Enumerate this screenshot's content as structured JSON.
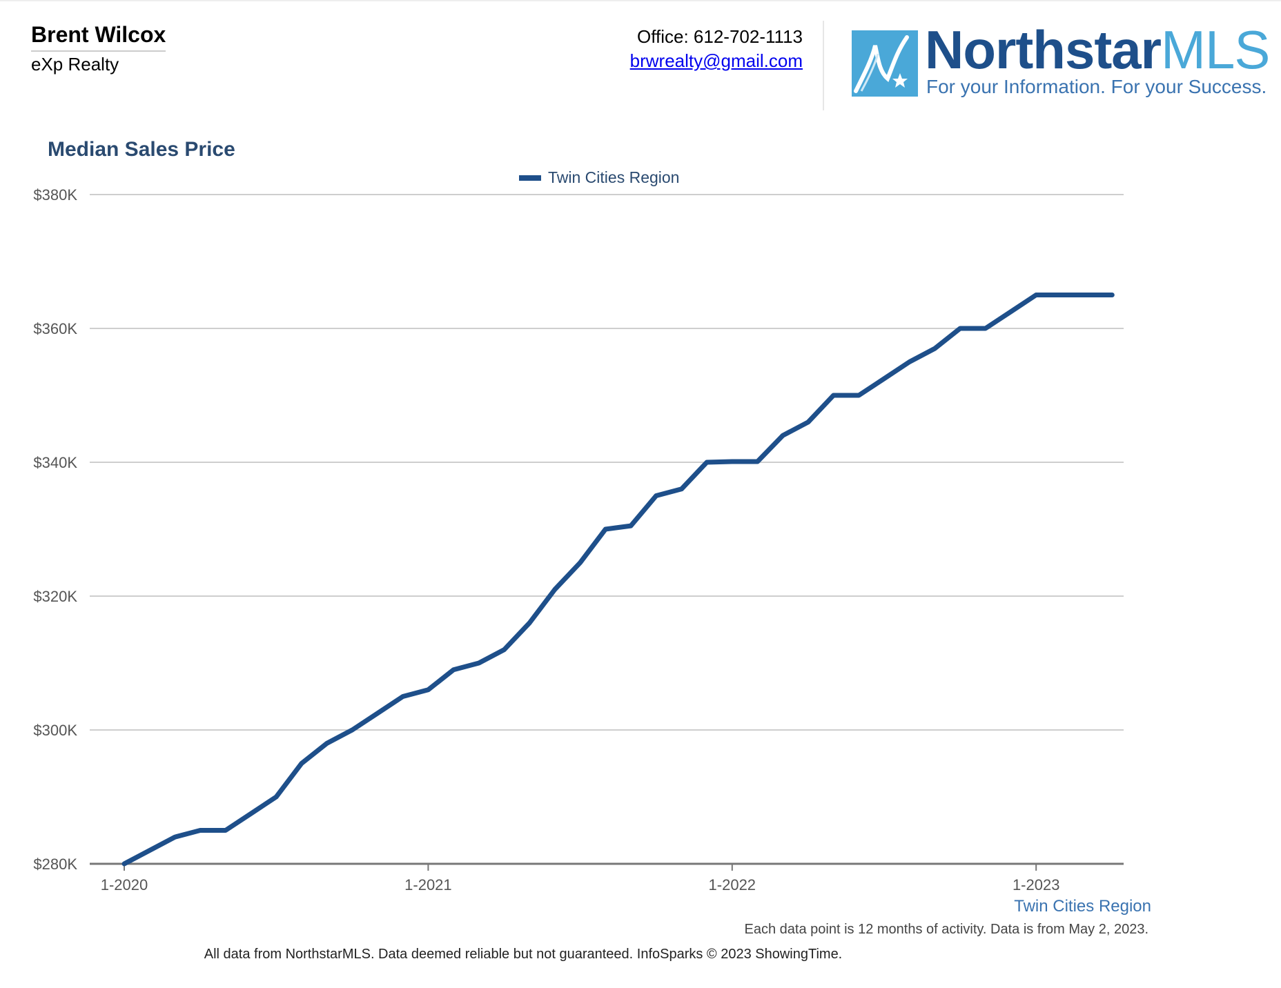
{
  "agent": {
    "name": "Brent Wilcox",
    "company": "eXp Realty"
  },
  "contact": {
    "office": "Office: 612-702-1113",
    "email": "brwrealty@gmail.com"
  },
  "logo": {
    "word_main": "Northstar",
    "word_accent": "MLS",
    "tagline": "For your Information. For your Success.",
    "brand_color": "#1e4f8a",
    "accent_color": "#4aa8d8",
    "icon": "northstar-logo-icon"
  },
  "chart_data": {
    "type": "line",
    "title": "Median Sales Price",
    "xlabel": "",
    "ylabel": "",
    "legend_position": "top-center",
    "grid": true,
    "ylim": [
      280000,
      380000
    ],
    "yticks": [
      {
        "value": 280000,
        "label": "$280K"
      },
      {
        "value": 300000,
        "label": "$300K"
      },
      {
        "value": 320000,
        "label": "$320K"
      },
      {
        "value": 340000,
        "label": "$340K"
      },
      {
        "value": 360000,
        "label": "$360K"
      },
      {
        "value": 380000,
        "label": "$380K"
      }
    ],
    "xticks": [
      {
        "value": "2020-01",
        "label": "1-2020"
      },
      {
        "value": "2021-01",
        "label": "1-2021"
      },
      {
        "value": "2022-01",
        "label": "1-2022"
      },
      {
        "value": "2023-01",
        "label": "1-2023"
      }
    ],
    "x": [
      "2020-01",
      "2020-02",
      "2020-03",
      "2020-04",
      "2020-05",
      "2020-06",
      "2020-07",
      "2020-08",
      "2020-09",
      "2020-10",
      "2020-11",
      "2020-12",
      "2021-01",
      "2021-02",
      "2021-03",
      "2021-04",
      "2021-05",
      "2021-06",
      "2021-07",
      "2021-08",
      "2021-09",
      "2021-10",
      "2021-11",
      "2021-12",
      "2022-01",
      "2022-02",
      "2022-03",
      "2022-04",
      "2022-05",
      "2022-06",
      "2022-07",
      "2022-08",
      "2022-09",
      "2022-10",
      "2022-11",
      "2022-12",
      "2023-01",
      "2023-02",
      "2023-03",
      "2023-04"
    ],
    "series": [
      {
        "name": "Twin Cities Region",
        "color": "#1e4f8a",
        "values": [
          280000,
          282000,
          284000,
          285000,
          285000,
          287500,
          290000,
          295000,
          298000,
          300000,
          302500,
          305000,
          306000,
          309000,
          310000,
          312000,
          316000,
          321000,
          325000,
          330000,
          330500,
          335000,
          336000,
          340000,
          340100,
          340100,
          344000,
          346000,
          350000,
          350000,
          352500,
          355000,
          357000,
          360000,
          360000,
          362500,
          365000,
          365000,
          365000,
          365000
        ]
      }
    ]
  },
  "bottom_region_label": "Twin Cities Region",
  "note": "Each data point is 12 months of activity. Data is from May 2, 2023.",
  "footer": "All data from NorthstarMLS. Data deemed reliable but not guaranteed. InfoSparks © 2023 ShowingTime."
}
